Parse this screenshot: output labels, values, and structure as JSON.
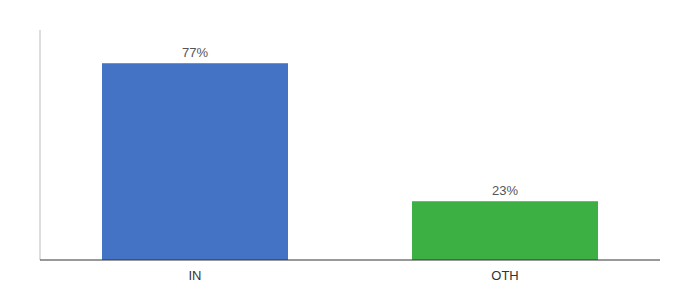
{
  "chart_data": {
    "type": "bar",
    "categories": [
      "IN",
      "OTH"
    ],
    "values": [
      77,
      23
    ],
    "value_labels": [
      "77%",
      "23%"
    ],
    "colors": [
      "#4472c4",
      "#3cb043"
    ],
    "ylim": [
      0,
      90
    ],
    "data_labels": true,
    "tick_labels": "x"
  }
}
